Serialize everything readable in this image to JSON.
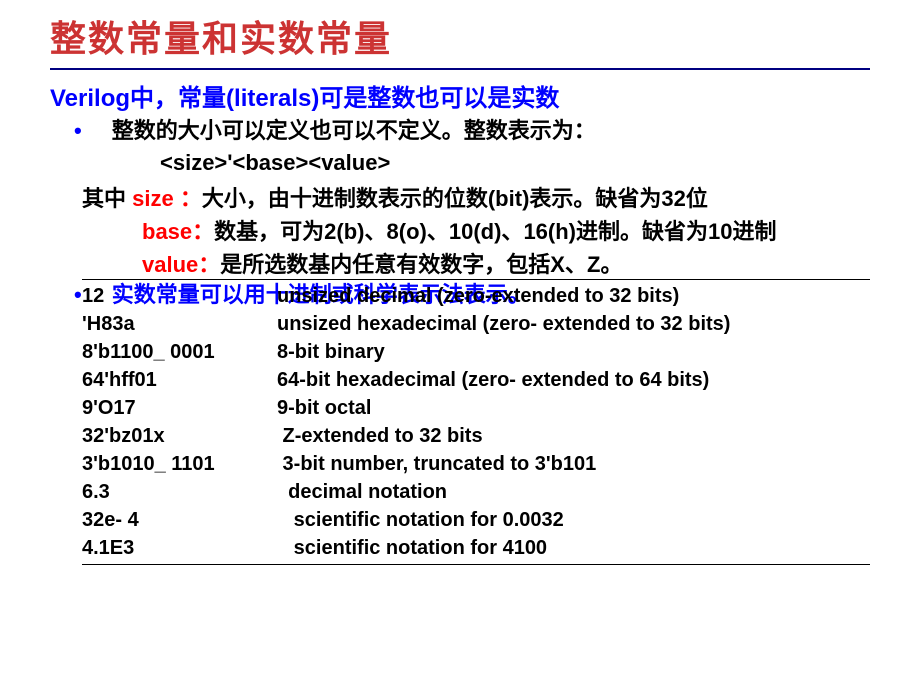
{
  "colors": {
    "title": "#cc3333",
    "subtitle": "#0000ff",
    "bullet": "#0000ff",
    "black": "#000000",
    "red": "#ff0000",
    "hr": "#000080"
  },
  "fonts": {
    "title_size": 36,
    "subtitle_size": 24,
    "body_size": 22,
    "table_size": 20
  },
  "title": "整数常量和实数常量",
  "subtitle_parts": {
    "p1": "Verilog",
    "p2": "中，常量",
    "p3": "(literals)",
    "p4": "可是整数也可以是实数"
  },
  "bullet1": "整数的大小可以定义也可以不定义。整数表示为：",
  "format": "<size>'<base><value>",
  "desc": {
    "line1_a": "其中",
    "line1_key": "size ：",
    "line1_b": "大小，由十进制数表示的位数",
    "line1_c": "(bit)",
    "line1_d": "表示。缺省为",
    "line1_e": "32",
    "line1_f": "位",
    "line2_key": "base：",
    "line2_a": "数基，可为",
    "line2_b": "2(b)",
    "line2_c": "、",
    "line2_d": "8(o)",
    "line2_e": "、",
    "line2_f": "10(d)",
    "line2_g": "、",
    "line2_h": "16(h)",
    "line2_i": "进制。缺省为",
    "line2_j": "10",
    "line2_k": "进制",
    "line3_key": "value：",
    "line3_a": "是所选数基内任意有效数字，包括",
    "line3_b": "X",
    "line3_c": "、",
    "line3_d": "Z",
    "line3_e": "。"
  },
  "bullet2": "实数常量可以用十进制或科学表示法表示。",
  "table": [
    {
      "c1": "12",
      "c2": "unsized decimal (zero-extended to 32 bits)"
    },
    {
      "c1": "'H83a",
      "c2": "unsized hexadecimal (zero- extended to 32 bits)"
    },
    {
      "c1": "8'b1100_ 0001",
      "c2": "8-bit binary"
    },
    {
      "c1": "64'hff01",
      "c2": "64-bit hexadecimal (zero- extended to 64 bits)"
    },
    {
      "c1": "9'O17",
      "c2": "9-bit octal"
    },
    {
      "c1": "32'bz01x",
      "c2": " Z-extended to 32 bits"
    },
    {
      "c1": "3'b1010_ 1101",
      "c2": " 3-bit number, truncated to 3'b101"
    },
    {
      "c1": "6.3",
      "c2": "  decimal notation"
    },
    {
      "c1": "32e- 4",
      "c2": "   scientific notation for 0.0032"
    },
    {
      "c1": "4.1E3",
      "c2": "   scientific notation for 4100"
    }
  ]
}
